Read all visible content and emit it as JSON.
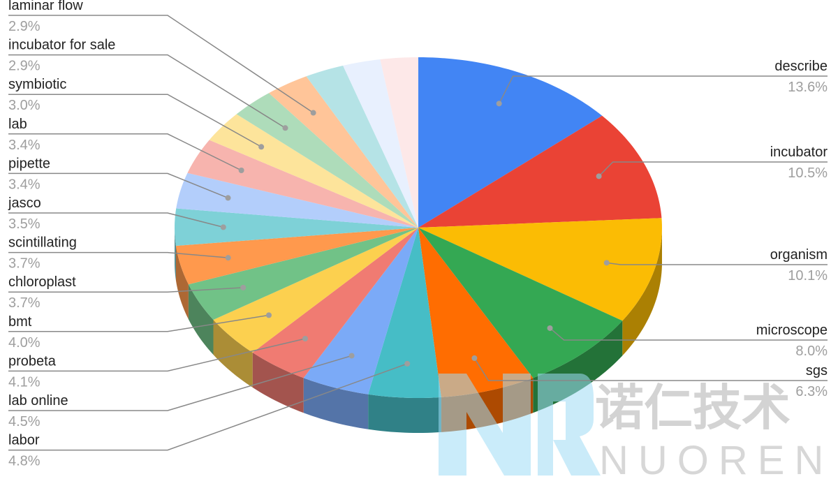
{
  "chart_data": {
    "type": "pie3d",
    "categories": [
      "describe",
      "incubator",
      "organism",
      "microscope",
      "sgs",
      "labor",
      "lab online",
      "probeta",
      "bmt",
      "chloroplast",
      "scintillating",
      "jasco",
      "pipette",
      "lab",
      "symbiotic",
      "incubator for sale",
      "laminar flow",
      null,
      null,
      null
    ],
    "values": [
      13.6,
      10.5,
      10.1,
      8.0,
      6.3,
      4.8,
      4.5,
      4.1,
      4.0,
      3.7,
      3.7,
      3.5,
      3.4,
      3.4,
      3.0,
      2.9,
      2.9,
      2.6,
      2.5,
      2.5
    ],
    "value_labels": [
      "13.6%",
      "10.5%",
      "10.1%",
      "8.0%",
      "6.3%",
      "4.8%",
      "4.5%",
      "4.1%",
      "4.0%",
      "3.7%",
      "3.7%",
      "3.5%",
      "3.4%",
      "3.4%",
      "3.0%",
      "2.9%",
      "2.9%",
      null,
      null,
      null
    ],
    "colors": [
      "#4285f4",
      "#ea4335",
      "#fbbc04",
      "#34a853",
      "#ff6d01",
      "#46bdc6",
      "#7baaf7",
      "#f07b72",
      "#fcd04f",
      "#71c287",
      "#ff994d",
      "#7ed1d7",
      "#b3cefb",
      "#f7b4ae",
      "#fde49b",
      "#aedcba",
      "#ffc599",
      "#b5e3e6",
      "#e8f0fe",
      "#fde8e8"
    ]
  },
  "watermark": {
    "name": "诺仁技术",
    "brand": "NUOREN"
  }
}
